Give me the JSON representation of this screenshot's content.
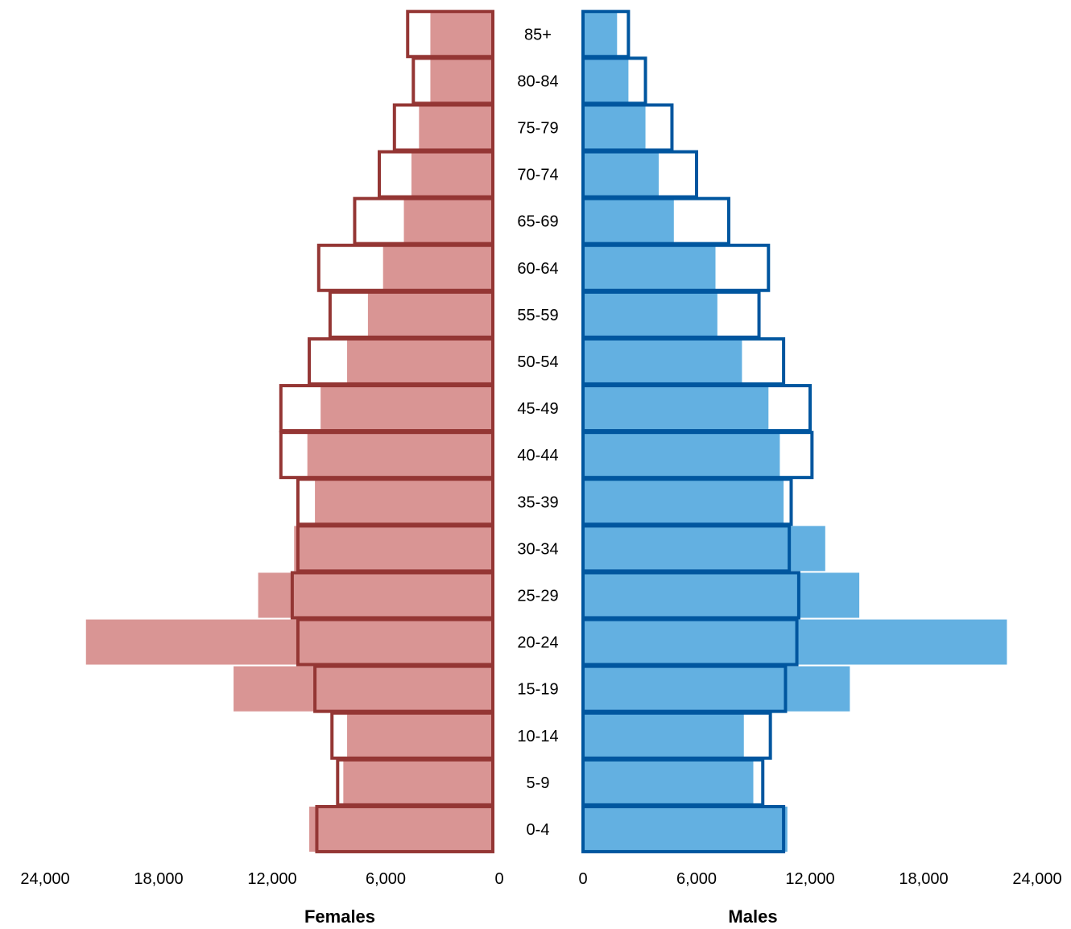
{
  "chart_data": {
    "type": "bar",
    "subtype": "population-pyramid",
    "categories": [
      "0-4",
      "5-9",
      "10-14",
      "15-19",
      "20-24",
      "25-29",
      "30-34",
      "35-39",
      "40-44",
      "45-49",
      "50-54",
      "55-59",
      "60-64",
      "65-69",
      "70-74",
      "75-79",
      "80-84",
      "85+"
    ],
    "panels": [
      {
        "name": "Females",
        "xlabel": "Females",
        "direction": "left",
        "xlim": [
          0,
          24000
        ],
        "ticks": [
          "24,000",
          "18,000",
          "12,000",
          "6,000",
          "0"
        ],
        "tick_values": [
          24000,
          18000,
          12000,
          6000,
          0
        ],
        "fill_color": "#d99594",
        "outline_color": "#943634",
        "filled_values": [
          9700,
          7900,
          7700,
          13700,
          21500,
          12400,
          10500,
          9400,
          9800,
          9100,
          7700,
          6600,
          5800,
          4700,
          4300,
          3900,
          3300,
          3300
        ],
        "outline_values": [
          9300,
          8200,
          8500,
          9400,
          10300,
          10600,
          10300,
          10300,
          11200,
          11200,
          9700,
          8600,
          9200,
          7300,
          6000,
          5200,
          4200,
          4500
        ]
      },
      {
        "name": "Males",
        "xlabel": "Males",
        "direction": "right",
        "xlim": [
          0,
          24000
        ],
        "ticks": [
          "0",
          "6,000",
          "12,000",
          "18,000",
          "24,000"
        ],
        "tick_values": [
          0,
          6000,
          12000,
          18000,
          24000
        ],
        "fill_color": "#63b0e1",
        "outline_color": "#00569f",
        "filled_values": [
          10800,
          9000,
          8500,
          14100,
          22400,
          14600,
          12800,
          10600,
          10400,
          9800,
          8400,
          7100,
          7000,
          4800,
          4000,
          3300,
          2400,
          1800
        ],
        "outline_values": [
          10600,
          9500,
          9900,
          10700,
          11300,
          11400,
          10900,
          11000,
          12100,
          12000,
          10600,
          9300,
          9800,
          7700,
          6000,
          4700,
          3300,
          2400
        ]
      }
    ],
    "grid": false,
    "legend": "none"
  }
}
